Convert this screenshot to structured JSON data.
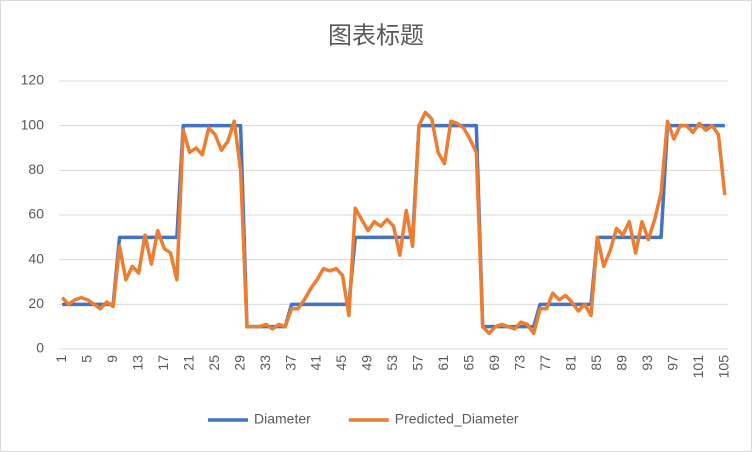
{
  "chart_data": {
    "type": "line",
    "title": "图表标题",
    "categories": [
      1,
      null,
      null,
      null,
      5,
      null,
      null,
      null,
      9,
      null,
      null,
      null,
      13,
      null,
      null,
      null,
      17,
      null,
      null,
      null,
      21,
      null,
      null,
      null,
      25,
      null,
      null,
      null,
      29,
      null,
      null,
      null,
      33,
      null,
      null,
      null,
      37,
      null,
      null,
      null,
      41,
      null,
      null,
      null,
      45,
      null,
      null,
      null,
      49,
      null,
      null,
      null,
      53,
      null,
      null,
      null,
      57,
      null,
      null,
      null,
      61,
      null,
      null,
      null,
      65,
      null,
      null,
      null,
      69,
      null,
      null,
      null,
      73,
      null,
      null,
      null,
      77,
      null,
      null,
      null,
      81,
      null,
      null,
      null,
      85,
      null,
      null,
      null,
      89,
      null,
      null,
      null,
      93,
      null,
      null,
      null,
      97,
      null,
      null,
      null,
      101,
      null,
      null,
      null,
      105
    ],
    "series": [
      {
        "name": "Diameter",
        "color": "#4472c4",
        "values": [
          20,
          20,
          20,
          20,
          20,
          20,
          20,
          20,
          20,
          50,
          50,
          50,
          50,
          50,
          50,
          50,
          50,
          50,
          50,
          100,
          100,
          100,
          100,
          100,
          100,
          100,
          100,
          100,
          100,
          10,
          10,
          10,
          10,
          10,
          10,
          10,
          20,
          20,
          20,
          20,
          20,
          20,
          20,
          20,
          20,
          20,
          50,
          50,
          50,
          50,
          50,
          50,
          50,
          50,
          50,
          50,
          100,
          100,
          100,
          100,
          100,
          100,
          100,
          100,
          100,
          100,
          10,
          10,
          10,
          10,
          10,
          10,
          10,
          10,
          10,
          20,
          20,
          20,
          20,
          20,
          20,
          20,
          20,
          20,
          50,
          50,
          50,
          50,
          50,
          50,
          50,
          50,
          50,
          50,
          50,
          100,
          100,
          100,
          100,
          100,
          100,
          100,
          100,
          100,
          100
        ]
      },
      {
        "name": "Predicted_Diameter",
        "color": "#ed7d31",
        "values": [
          23,
          20,
          22,
          23,
          22,
          20,
          18,
          21,
          19,
          46,
          31,
          37,
          34,
          51,
          38,
          53,
          45,
          43,
          31,
          98,
          88,
          90,
          87,
          99,
          96,
          89,
          93,
          102,
          80,
          10,
          10,
          10,
          11,
          9,
          11,
          10,
          18,
          18,
          22,
          27,
          31,
          36,
          35,
          36,
          33,
          15,
          63,
          58,
          53,
          57,
          55,
          58,
          55,
          42,
          62,
          46,
          100,
          106,
          103,
          88,
          83,
          102,
          101,
          99,
          94,
          88,
          10,
          7,
          10,
          11,
          10,
          9,
          12,
          11,
          7,
          18,
          18,
          25,
          22,
          24,
          21,
          17,
          20,
          15,
          50,
          37,
          44,
          54,
          51,
          57,
          43,
          57,
          49,
          58,
          70,
          102,
          94,
          100,
          100,
          97,
          101,
          98,
          100,
          96,
          69
        ]
      }
    ],
    "ylim": [
      0,
      120
    ],
    "yticks": [
      0,
      20,
      40,
      60,
      80,
      100,
      120
    ],
    "grid": true,
    "legend": "bottom"
  }
}
